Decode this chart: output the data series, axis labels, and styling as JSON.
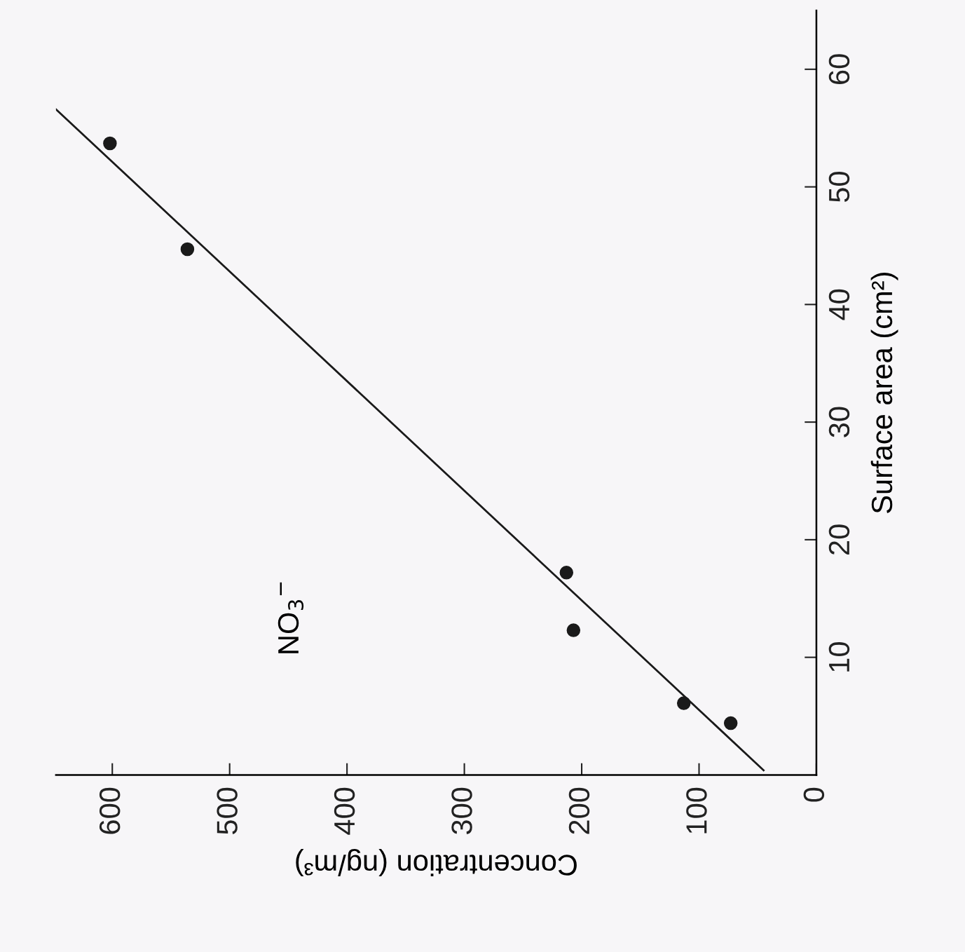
{
  "chart_data": {
    "type": "scatter",
    "xlabel": "Concentration (ng/m³)",
    "ylabel": "Surface area (cm²)",
    "series": [
      {
        "color": "#1a1a1a",
        "marker": "circle",
        "x": [
          602,
          536,
          213,
          207,
          113,
          73
        ],
        "values": [
          53.7,
          44.7,
          17.2,
          12.3,
          6.1,
          4.4
        ]
      },
      {
        "type": "line",
        "color": "#1a1a1a",
        "x": [
          45,
          648
        ],
        "values": [
          0.4,
          56.6
        ]
      }
    ],
    "xlim": [
      648,
      0
    ],
    "xticks": [
      0,
      100,
      200,
      300,
      400,
      500,
      600
    ],
    "ylim": [
      0,
      65
    ],
    "yticks": [
      10,
      20,
      30,
      40,
      50,
      60
    ],
    "grid": false,
    "annotations": [
      "NO$_{3}$$^{−}$"
    ]
  }
}
